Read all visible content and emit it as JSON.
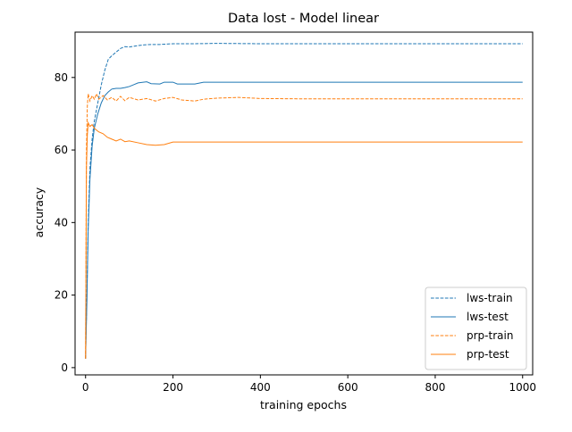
{
  "chart_data": {
    "type": "line",
    "title": "Data lost - Model linear",
    "xlabel": "training epochs",
    "ylabel": "accuracy",
    "xlim": [
      -24,
      1023
    ],
    "ylim": [
      -2,
      92.5
    ],
    "xticks": [
      0,
      200,
      400,
      600,
      800,
      1000
    ],
    "yticks": [
      0,
      20,
      40,
      60,
      80
    ],
    "grid": false,
    "legend_position": "lower-right",
    "series": [
      {
        "name": "lws-train",
        "color": "#1f77b4",
        "dash": "dashed",
        "points": [
          [
            0,
            2.5
          ],
          [
            3,
            20
          ],
          [
            6,
            40
          ],
          [
            10,
            55
          ],
          [
            15,
            63
          ],
          [
            20,
            68
          ],
          [
            28,
            73
          ],
          [
            36,
            78
          ],
          [
            44,
            82
          ],
          [
            52,
            85
          ],
          [
            60,
            86
          ],
          [
            70,
            87
          ],
          [
            80,
            88
          ],
          [
            90,
            88.5
          ],
          [
            100,
            88.4
          ],
          [
            110,
            88.6
          ],
          [
            120,
            88.8
          ],
          [
            135,
            89
          ],
          [
            150,
            89.1
          ],
          [
            170,
            89.1
          ],
          [
            200,
            89.3
          ],
          [
            250,
            89.3
          ],
          [
            300,
            89.4
          ],
          [
            400,
            89.3
          ],
          [
            500,
            89.3
          ],
          [
            600,
            89.3
          ],
          [
            700,
            89.3
          ],
          [
            800,
            89.3
          ],
          [
            900,
            89.3
          ],
          [
            1000,
            89.3
          ]
        ]
      },
      {
        "name": "lws-test",
        "color": "#1f77b4",
        "dash": "solid",
        "points": [
          [
            0,
            2.5
          ],
          [
            3,
            18
          ],
          [
            6,
            38
          ],
          [
            10,
            52
          ],
          [
            15,
            61
          ],
          [
            20,
            66
          ],
          [
            28,
            70
          ],
          [
            36,
            73
          ],
          [
            44,
            75
          ],
          [
            52,
            76
          ],
          [
            60,
            76.8
          ],
          [
            70,
            77
          ],
          [
            80,
            77
          ],
          [
            90,
            77.2
          ],
          [
            100,
            77.5
          ],
          [
            110,
            78
          ],
          [
            120,
            78.5
          ],
          [
            140,
            78.8
          ],
          [
            150,
            78.3
          ],
          [
            170,
            78.2
          ],
          [
            180,
            78.7
          ],
          [
            200,
            78.7
          ],
          [
            210,
            78.2
          ],
          [
            250,
            78.2
          ],
          [
            270,
            78.7
          ],
          [
            300,
            78.7
          ],
          [
            400,
            78.7
          ],
          [
            500,
            78.7
          ],
          [
            600,
            78.7
          ],
          [
            700,
            78.7
          ],
          [
            800,
            78.7
          ],
          [
            900,
            78.7
          ],
          [
            1000,
            78.7
          ]
        ]
      },
      {
        "name": "prp-train",
        "color": "#ff7f0e",
        "dash": "dashed",
        "points": [
          [
            0,
            2.5
          ],
          [
            2,
            60
          ],
          [
            4,
            72
          ],
          [
            6,
            75.5
          ],
          [
            10,
            73.5
          ],
          [
            15,
            75
          ],
          [
            20,
            74
          ],
          [
            25,
            75.5
          ],
          [
            30,
            74
          ],
          [
            40,
            75
          ],
          [
            50,
            73.8
          ],
          [
            60,
            74.5
          ],
          [
            70,
            73.5
          ],
          [
            80,
            74.8
          ],
          [
            90,
            73.6
          ],
          [
            100,
            74.5
          ],
          [
            120,
            73.8
          ],
          [
            140,
            74.2
          ],
          [
            160,
            73.5
          ],
          [
            180,
            74.2
          ],
          [
            200,
            74.5
          ],
          [
            220,
            73.8
          ],
          [
            250,
            73.5
          ],
          [
            270,
            74
          ],
          [
            300,
            74.3
          ],
          [
            350,
            74.5
          ],
          [
            400,
            74.2
          ],
          [
            500,
            74.1
          ],
          [
            600,
            74.1
          ],
          [
            700,
            74.1
          ],
          [
            800,
            74.1
          ],
          [
            900,
            74.1
          ],
          [
            1000,
            74.1
          ]
        ]
      },
      {
        "name": "prp-test",
        "color": "#ff7f0e",
        "dash": "solid",
        "points": [
          [
            0,
            2.5
          ],
          [
            2,
            55
          ],
          [
            4,
            64
          ],
          [
            6,
            67.5
          ],
          [
            10,
            66.5
          ],
          [
            15,
            67
          ],
          [
            20,
            66
          ],
          [
            25,
            65.5
          ],
          [
            30,
            65
          ],
          [
            40,
            64.5
          ],
          [
            50,
            63.5
          ],
          [
            60,
            63
          ],
          [
            70,
            62.5
          ],
          [
            80,
            63
          ],
          [
            90,
            62.3
          ],
          [
            100,
            62.5
          ],
          [
            120,
            62
          ],
          [
            140,
            61.5
          ],
          [
            160,
            61.3
          ],
          [
            180,
            61.5
          ],
          [
            200,
            62.2
          ],
          [
            220,
            62.2
          ],
          [
            300,
            62.2
          ],
          [
            400,
            62.2
          ],
          [
            500,
            62.2
          ],
          [
            600,
            62.2
          ],
          [
            700,
            62.2
          ],
          [
            800,
            62.2
          ],
          [
            900,
            62.2
          ],
          [
            1000,
            62.2
          ]
        ]
      }
    ]
  }
}
